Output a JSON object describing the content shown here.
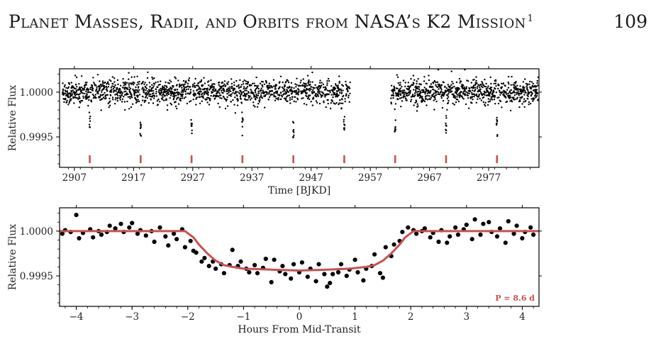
{
  "page": {
    "running_title": "Planet Masses, Radii, and Orbits from NASA’s K2 Mission",
    "running_title_sup": "1",
    "page_number": "109"
  },
  "colors": {
    "model": "#c9504f",
    "points": "#000000",
    "label": "#c9504f"
  },
  "chart_data": [
    {
      "type": "scatter",
      "xlabel": "Time [BJKD]",
      "ylabel": "Relative Flux",
      "xlim": [
        2904.5,
        2985.5
      ],
      "ylim": [
        0.99916,
        1.00026
      ],
      "xticks": [
        2907,
        2917,
        2927,
        2937,
        2947,
        2957,
        2967,
        2977
      ],
      "yticks": [
        1.0,
        0.9995
      ],
      "ytick_labels": [
        "1.0000",
        "0.9995"
      ],
      "gap": [
        2953.6,
        2960.5
      ],
      "transit_epochs": [
        2909.6,
        2918.2,
        2926.8,
        2935.4,
        2944.0,
        2952.6,
        2961.2,
        2969.8,
        2978.4
      ],
      "transit_marker_color": "#c9504f",
      "baseline_scatter_ppm": 70,
      "transit_depth": 0.00045
    },
    {
      "type": "scatter",
      "xlabel": "Hours From Mid-Transit",
      "ylabel": "Relative Flux",
      "xlim": [
        -4.3,
        4.3
      ],
      "ylim": [
        0.99916,
        1.00026
      ],
      "xticks": [
        -4,
        -3,
        -2,
        -1,
        0,
        1,
        2,
        3,
        4
      ],
      "xtick_labels": [
        "−4",
        "−3",
        "−2",
        "−1",
        "0",
        "1",
        "2",
        "3",
        "4"
      ],
      "yticks": [
        1.0,
        0.9995
      ],
      "ytick_labels": [
        "1.0000",
        "0.9995"
      ],
      "annotation": "P = 8.6 d",
      "model": {
        "name": "transit model",
        "x": [
          -4.3,
          -2.05,
          -1.9,
          -1.8,
          -1.65,
          -1.5,
          -1.35,
          -1.2,
          -1.0,
          -0.5,
          0.0,
          0.5,
          0.9,
          1.2,
          1.35,
          1.5,
          1.65,
          1.8,
          1.9,
          2.05,
          4.3
        ],
        "y": [
          1.0,
          1.0,
          0.99993,
          0.99985,
          0.99975,
          0.99967,
          0.99962,
          0.9996,
          0.99958,
          0.99957,
          0.99956,
          0.99957,
          0.99958,
          0.9996,
          0.99962,
          0.99967,
          0.99975,
          0.99985,
          0.99993,
          1.0,
          1.0
        ]
      },
      "points": {
        "x": [
          -4.25,
          -4.2,
          -4.1,
          -4.0,
          -3.95,
          -3.88,
          -3.75,
          -3.7,
          -3.6,
          -3.55,
          -3.45,
          -3.4,
          -3.3,
          -3.2,
          -3.15,
          -3.05,
          -3.0,
          -2.9,
          -2.85,
          -2.75,
          -2.65,
          -2.6,
          -2.5,
          -2.4,
          -2.35,
          -2.25,
          -2.2,
          -2.1,
          -2.05,
          -1.95,
          -1.9,
          -1.85,
          -1.75,
          -1.7,
          -1.62,
          -1.55,
          -1.5,
          -1.4,
          -1.35,
          -1.25,
          -1.2,
          -1.1,
          -1.05,
          -0.95,
          -0.9,
          -0.8,
          -0.75,
          -0.65,
          -0.6,
          -0.5,
          -0.45,
          -0.35,
          -0.3,
          -0.25,
          -0.15,
          -0.1,
          0.0,
          0.05,
          0.15,
          0.2,
          0.3,
          0.35,
          0.45,
          0.5,
          0.55,
          0.6,
          0.7,
          0.75,
          0.85,
          0.9,
          1.0,
          1.05,
          1.15,
          1.2,
          1.3,
          1.35,
          1.45,
          1.5,
          1.55,
          1.65,
          1.7,
          1.8,
          1.85,
          1.95,
          2.05,
          2.1,
          2.2,
          2.25,
          2.35,
          2.4,
          2.5,
          2.55,
          2.65,
          2.7,
          2.8,
          2.85,
          2.95,
          3.0,
          3.1,
          3.15,
          3.25,
          3.3,
          3.4,
          3.45,
          3.55,
          3.6,
          3.7,
          3.75,
          3.85,
          3.9,
          4.0,
          4.05,
          4.15,
          4.2
        ],
        "y": [
          0.99997,
          1.00001,
          0.99999,
          1.00018,
          0.99992,
          0.99998,
          1.00002,
          0.99993,
          1.0,
          0.99996,
          0.99999,
          1.00006,
          1.00003,
          1.00008,
          0.99999,
          1.00004,
          1.00009,
          0.99997,
          1.00001,
          0.99995,
          1.0,
          0.99988,
          1.00004,
          0.99994,
          0.99984,
          0.99997,
          0.99991,
          1.00002,
          0.99982,
          0.99989,
          0.99978,
          0.99976,
          0.99966,
          0.9997,
          0.99961,
          0.99966,
          0.99958,
          0.99963,
          0.99953,
          0.99962,
          0.99979,
          0.99961,
          0.99966,
          0.99958,
          0.99954,
          0.99962,
          0.99953,
          0.99959,
          0.99969,
          0.99943,
          0.99968,
          0.99955,
          0.99961,
          0.99952,
          0.99947,
          0.99963,
          0.99954,
          0.99965,
          0.99949,
          0.99958,
          0.99944,
          0.99963,
          0.99952,
          0.99938,
          0.99942,
          0.99952,
          0.99954,
          0.99963,
          0.9995,
          0.99957,
          0.99968,
          0.99954,
          0.99945,
          0.99958,
          0.99961,
          0.99974,
          0.99953,
          0.99948,
          0.99982,
          0.99972,
          0.99985,
          0.99989,
          0.99999,
          1.00004,
          1.00001,
          0.99997,
          1.0,
          1.00003,
          0.99993,
          0.99998,
          0.99988,
          1.00001,
          0.99987,
          0.99994,
          1.00004,
          0.99996,
          1.00002,
          1.00007,
          0.99991,
          1.00013,
          0.99996,
          1.00008,
          1.0001,
          0.99999,
          0.99994,
          1.00003,
          0.99987,
          1.00011,
          0.99997,
          1.00006,
          0.99992,
          0.99999,
          1.00004,
          0.99996
        ]
      }
    }
  ]
}
